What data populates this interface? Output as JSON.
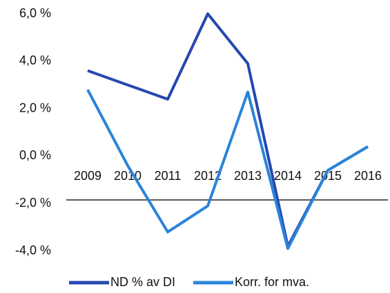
{
  "chart_data": {
    "type": "line",
    "categories": [
      "2009",
      "2010",
      "2011",
      "2012",
      "2013",
      "2014",
      "2015",
      "2016"
    ],
    "series": [
      {
        "name": "ND % av DI",
        "color": "#2647b0",
        "values": [
          3.6,
          3.0,
          2.4,
          6.0,
          3.9,
          -3.8,
          -0.6,
          0.4
        ]
      },
      {
        "name": "Korr. for mva.",
        "color": "#2a84d8",
        "values": [
          2.8,
          -0.4,
          -3.2,
          -2.1,
          2.7,
          -3.9,
          -0.6,
          0.4
        ]
      }
    ],
    "ylim": [
      -4,
      6
    ],
    "yticks": [
      {
        "value": -4,
        "label": "-4,0 %"
      },
      {
        "value": -2,
        "label": "-2,0 %"
      },
      {
        "value": 0,
        "label": "0,0 %"
      },
      {
        "value": 2,
        "label": "2,0 %"
      },
      {
        "value": 4,
        "label": "4,0 %"
      },
      {
        "value": 6,
        "label": "6,0 %"
      }
    ],
    "legend": "bottom"
  }
}
